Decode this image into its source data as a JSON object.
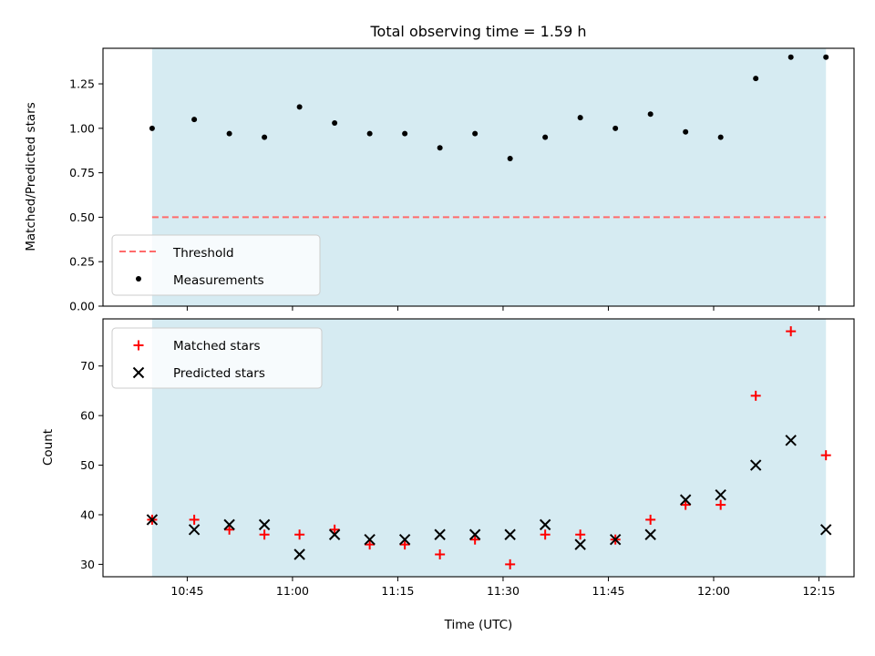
{
  "chart_data": {
    "type": "scatter",
    "title": "Total observing time = 1.59 h",
    "xlabel": "Time (UTC)",
    "x_ticks": [
      "10:45",
      "11:00",
      "11:15",
      "11:30",
      "11:45",
      "12:00",
      "12:15"
    ],
    "x_range": [
      "10:33",
      "12:20"
    ],
    "shaded_span": [
      "10:40",
      "12:16"
    ],
    "times": [
      "10:40",
      "10:46",
      "10:51",
      "10:56",
      "11:01",
      "11:06",
      "11:11",
      "11:16",
      "11:21",
      "11:26",
      "11:31",
      "11:36",
      "11:41",
      "11:46",
      "11:51",
      "11:56",
      "12:01",
      "12:06",
      "12:11",
      "12:16"
    ],
    "ratio_panel": {
      "ylabel": "Matched/Predicted stars",
      "ylim": [
        0,
        1.45
      ],
      "yticks": [
        "0.00",
        "0.25",
        "0.50",
        "0.75",
        "1.00",
        "1.25"
      ],
      "threshold": 0.5,
      "legend": [
        "Threshold",
        "Measurements"
      ],
      "values": [
        1.0,
        1.05,
        0.97,
        0.95,
        1.12,
        1.03,
        0.97,
        0.97,
        0.89,
        0.97,
        0.83,
        0.95,
        1.06,
        1.0,
        1.08,
        0.98,
        0.95,
        1.28,
        1.4,
        1.4
      ]
    },
    "count_panel": {
      "ylabel": "Count",
      "ylim": [
        27.5,
        79.5
      ],
      "yticks": [
        "30",
        "40",
        "50",
        "60",
        "70"
      ],
      "legend": [
        "Matched stars",
        "Predicted stars"
      ],
      "series": [
        {
          "name": "Matched stars",
          "color": "#ff0000",
          "marker": "+",
          "values": [
            39,
            39,
            37,
            36,
            36,
            37,
            34,
            34,
            32,
            35,
            30,
            36,
            36,
            35,
            39,
            42,
            42,
            64,
            77,
            52
          ]
        },
        {
          "name": "Predicted stars",
          "color": "#000000",
          "marker": "x",
          "values": [
            39,
            37,
            38,
            38,
            32,
            36,
            35,
            35,
            36,
            36,
            36,
            38,
            34,
            35,
            36,
            43,
            44,
            50,
            55,
            37
          ]
        }
      ]
    },
    "colors": {
      "span": "#add8e6",
      "threshold": "#ff6b6b",
      "measurement": "#000000"
    }
  }
}
